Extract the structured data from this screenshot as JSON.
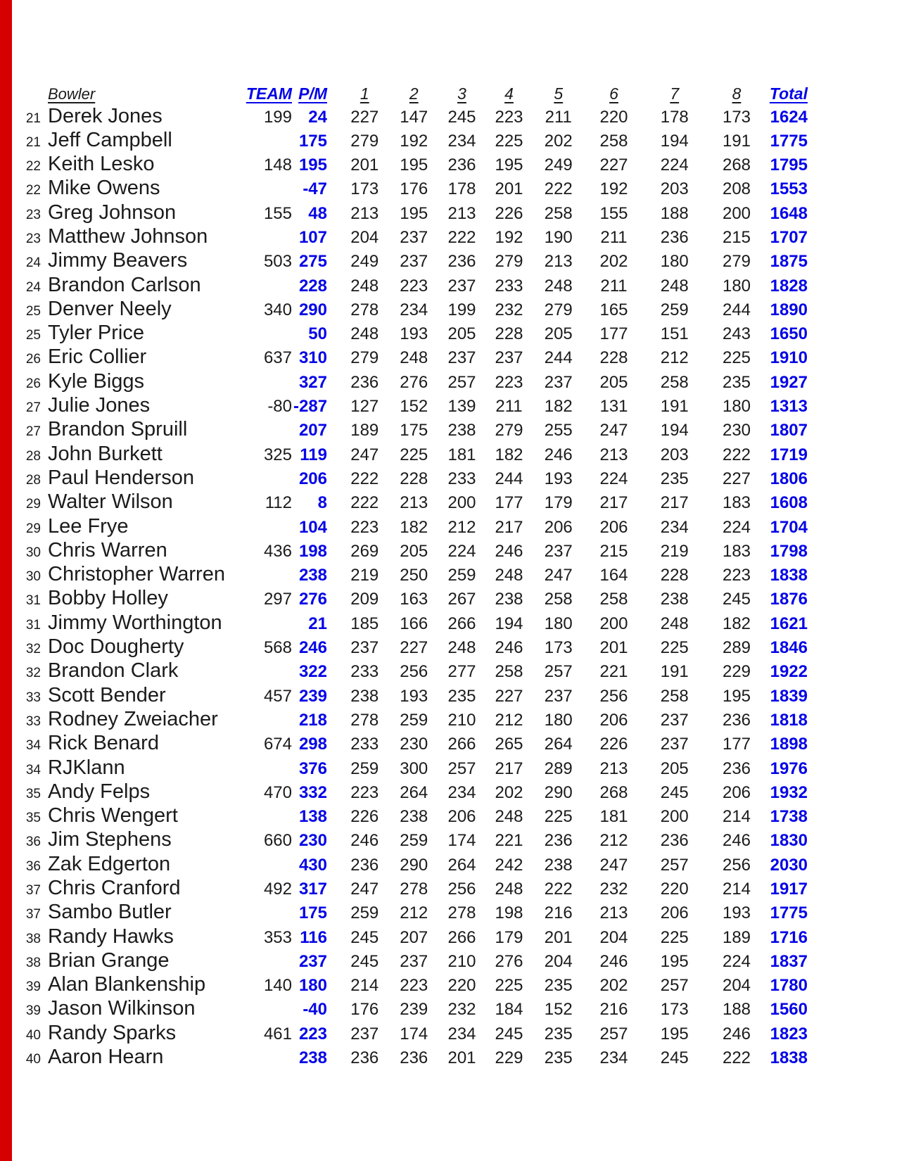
{
  "page": {
    "edge_stripe_color": "#d60000",
    "background": "#ffffff"
  },
  "table": {
    "colors": {
      "link_blue": "#0505e8",
      "text_black": "#1b1b1b"
    },
    "headers": {
      "bowler": "Bowler",
      "team": "TEAM",
      "pm": "P/M",
      "games": [
        "1",
        "2",
        "3",
        "4",
        "5",
        "6",
        "7",
        "8"
      ],
      "total": "Total"
    },
    "rows": [
      {
        "place": "21",
        "name": "Derek Jones",
        "team": "199",
        "pm": "24",
        "games": [
          "227",
          "147",
          "245",
          "223",
          "211",
          "220",
          "178",
          "173"
        ],
        "total": "1624"
      },
      {
        "place": "21",
        "name": "Jeff Campbell",
        "team": "",
        "pm": "175",
        "games": [
          "279",
          "192",
          "234",
          "225",
          "202",
          "258",
          "194",
          "191"
        ],
        "total": "1775"
      },
      {
        "place": "22",
        "name": "Keith Lesko",
        "team": "148",
        "pm": "195",
        "games": [
          "201",
          "195",
          "236",
          "195",
          "249",
          "227",
          "224",
          "268"
        ],
        "total": "1795"
      },
      {
        "place": "22",
        "name": "Mike Owens",
        "team": "",
        "pm": "-47",
        "games": [
          "173",
          "176",
          "178",
          "201",
          "222",
          "192",
          "203",
          "208"
        ],
        "total": "1553"
      },
      {
        "place": "23",
        "name": "Greg Johnson",
        "team": "155",
        "pm": "48",
        "games": [
          "213",
          "195",
          "213",
          "226",
          "258",
          "155",
          "188",
          "200"
        ],
        "total": "1648"
      },
      {
        "place": "23",
        "name": "Matthew Johnson",
        "team": "",
        "pm": "107",
        "games": [
          "204",
          "237",
          "222",
          "192",
          "190",
          "211",
          "236",
          "215"
        ],
        "total": "1707"
      },
      {
        "place": "24",
        "name": "Jimmy Beavers",
        "team": "503",
        "pm": "275",
        "games": [
          "249",
          "237",
          "236",
          "279",
          "213",
          "202",
          "180",
          "279"
        ],
        "total": "1875"
      },
      {
        "place": "24",
        "name": "Brandon Carlson",
        "team": "",
        "pm": "228",
        "games": [
          "248",
          "223",
          "237",
          "233",
          "248",
          "211",
          "248",
          "180"
        ],
        "total": "1828"
      },
      {
        "place": "25",
        "name": "Denver Neely",
        "team": "340",
        "pm": "290",
        "games": [
          "278",
          "234",
          "199",
          "232",
          "279",
          "165",
          "259",
          "244"
        ],
        "total": "1890"
      },
      {
        "place": "25",
        "name": "Tyler Price",
        "team": "",
        "pm": "50",
        "games": [
          "248",
          "193",
          "205",
          "228",
          "205",
          "177",
          "151",
          "243"
        ],
        "total": "1650"
      },
      {
        "place": "26",
        "name": "Eric Collier",
        "team": "637",
        "pm": "310",
        "games": [
          "279",
          "248",
          "237",
          "237",
          "244",
          "228",
          "212",
          "225"
        ],
        "total": "1910"
      },
      {
        "place": "26",
        "name": "Kyle Biggs",
        "team": "",
        "pm": "327",
        "games": [
          "236",
          "276",
          "257",
          "223",
          "237",
          "205",
          "258",
          "235"
        ],
        "total": "1927"
      },
      {
        "place": "27",
        "name": "Julie Jones",
        "team": "-80",
        "pm": "-287",
        "games": [
          "127",
          "152",
          "139",
          "211",
          "182",
          "131",
          "191",
          "180"
        ],
        "total": "1313"
      },
      {
        "place": "27",
        "name": "Brandon Spruill",
        "team": "",
        "pm": "207",
        "games": [
          "189",
          "175",
          "238",
          "279",
          "255",
          "247",
          "194",
          "230"
        ],
        "total": "1807"
      },
      {
        "place": "28",
        "name": "John Burkett",
        "team": "325",
        "pm": "119",
        "games": [
          "247",
          "225",
          "181",
          "182",
          "246",
          "213",
          "203",
          "222"
        ],
        "total": "1719"
      },
      {
        "place": "28",
        "name": "Paul Henderson",
        "team": "",
        "pm": "206",
        "games": [
          "222",
          "228",
          "233",
          "244",
          "193",
          "224",
          "235",
          "227"
        ],
        "total": "1806"
      },
      {
        "place": "29",
        "name": "Walter Wilson",
        "team": "112",
        "pm": "8",
        "games": [
          "222",
          "213",
          "200",
          "177",
          "179",
          "217",
          "217",
          "183"
        ],
        "total": "1608"
      },
      {
        "place": "29",
        "name": "Lee Frye",
        "team": "",
        "pm": "104",
        "games": [
          "223",
          "182",
          "212",
          "217",
          "206",
          "206",
          "234",
          "224"
        ],
        "total": "1704"
      },
      {
        "place": "30",
        "name": "Chris Warren",
        "team": "436",
        "pm": "198",
        "games": [
          "269",
          "205",
          "224",
          "246",
          "237",
          "215",
          "219",
          "183"
        ],
        "total": "1798"
      },
      {
        "place": "30",
        "name": "Christopher Warren",
        "team": "",
        "pm": "238",
        "games": [
          "219",
          "250",
          "259",
          "248",
          "247",
          "164",
          "228",
          "223"
        ],
        "total": "1838"
      },
      {
        "place": "31",
        "name": "Bobby Holley",
        "team": "297",
        "pm": "276",
        "games": [
          "209",
          "163",
          "267",
          "238",
          "258",
          "258",
          "238",
          "245"
        ],
        "total": "1876"
      },
      {
        "place": "31",
        "name": "Jimmy Worthington",
        "team": "",
        "pm": "21",
        "games": [
          "185",
          "166",
          "266",
          "194",
          "180",
          "200",
          "248",
          "182"
        ],
        "total": "1621"
      },
      {
        "place": "32",
        "name": "Doc Dougherty",
        "team": "568",
        "pm": "246",
        "games": [
          "237",
          "227",
          "248",
          "246",
          "173",
          "201",
          "225",
          "289"
        ],
        "total": "1846"
      },
      {
        "place": "32",
        "name": "Brandon Clark",
        "team": "",
        "pm": "322",
        "games": [
          "233",
          "256",
          "277",
          "258",
          "257",
          "221",
          "191",
          "229"
        ],
        "total": "1922"
      },
      {
        "place": "33",
        "name": "Scott Bender",
        "team": "457",
        "pm": "239",
        "games": [
          "238",
          "193",
          "235",
          "227",
          "237",
          "256",
          "258",
          "195"
        ],
        "total": "1839"
      },
      {
        "place": "33",
        "name": "Rodney Zweiacher",
        "team": "",
        "pm": "218",
        "games": [
          "278",
          "259",
          "210",
          "212",
          "180",
          "206",
          "237",
          "236"
        ],
        "total": "1818"
      },
      {
        "place": "34",
        "name": "Rick Benard",
        "team": "674",
        "pm": "298",
        "games": [
          "233",
          "230",
          "266",
          "265",
          "264",
          "226",
          "237",
          "177"
        ],
        "total": "1898"
      },
      {
        "place": "34",
        "name": "RJKlann",
        "team": "",
        "pm": "376",
        "games": [
          "259",
          "300",
          "257",
          "217",
          "289",
          "213",
          "205",
          "236"
        ],
        "total": "1976"
      },
      {
        "place": "35",
        "name": "Andy Felps",
        "team": "470",
        "pm": "332",
        "games": [
          "223",
          "264",
          "234",
          "202",
          "290",
          "268",
          "245",
          "206"
        ],
        "total": "1932"
      },
      {
        "place": "35",
        "name": "Chris Wengert",
        "team": "",
        "pm": "138",
        "games": [
          "226",
          "238",
          "206",
          "248",
          "225",
          "181",
          "200",
          "214"
        ],
        "total": "1738"
      },
      {
        "place": "36",
        "name": "Jim Stephens",
        "team": "660",
        "pm": "230",
        "games": [
          "246",
          "259",
          "174",
          "221",
          "236",
          "212",
          "236",
          "246"
        ],
        "total": "1830"
      },
      {
        "place": "36",
        "name": "Zak Edgerton",
        "team": "",
        "pm": "430",
        "games": [
          "236",
          "290",
          "264",
          "242",
          "238",
          "247",
          "257",
          "256"
        ],
        "total": "2030"
      },
      {
        "place": "37",
        "name": "Chris Cranford",
        "team": "492",
        "pm": "317",
        "games": [
          "247",
          "278",
          "256",
          "248",
          "222",
          "232",
          "220",
          "214"
        ],
        "total": "1917"
      },
      {
        "place": "37",
        "name": "Sambo Butler",
        "team": "",
        "pm": "175",
        "games": [
          "259",
          "212",
          "278",
          "198",
          "216",
          "213",
          "206",
          "193"
        ],
        "total": "1775"
      },
      {
        "place": "38",
        "name": "Randy Hawks",
        "team": "353",
        "pm": "116",
        "games": [
          "245",
          "207",
          "266",
          "179",
          "201",
          "204",
          "225",
          "189"
        ],
        "total": "1716"
      },
      {
        "place": "38",
        "name": "Brian Grange",
        "team": "",
        "pm": "237",
        "games": [
          "245",
          "237",
          "210",
          "276",
          "204",
          "246",
          "195",
          "224"
        ],
        "total": "1837"
      },
      {
        "place": "39",
        "name": "Alan Blankenship",
        "team": "140",
        "pm": "180",
        "games": [
          "214",
          "223",
          "220",
          "225",
          "235",
          "202",
          "257",
          "204"
        ],
        "total": "1780"
      },
      {
        "place": "39",
        "name": "Jason Wilkinson",
        "team": "",
        "pm": "-40",
        "games": [
          "176",
          "239",
          "232",
          "184",
          "152",
          "216",
          "173",
          "188"
        ],
        "total": "1560"
      },
      {
        "place": "40",
        "name": "Randy Sparks",
        "team": "461",
        "pm": "223",
        "games": [
          "237",
          "174",
          "234",
          "245",
          "235",
          "257",
          "195",
          "246"
        ],
        "total": "1823"
      },
      {
        "place": "40",
        "name": "Aaron Hearn",
        "team": "",
        "pm": "238",
        "games": [
          "236",
          "236",
          "201",
          "229",
          "235",
          "234",
          "245",
          "222"
        ],
        "total": "1838"
      }
    ]
  }
}
